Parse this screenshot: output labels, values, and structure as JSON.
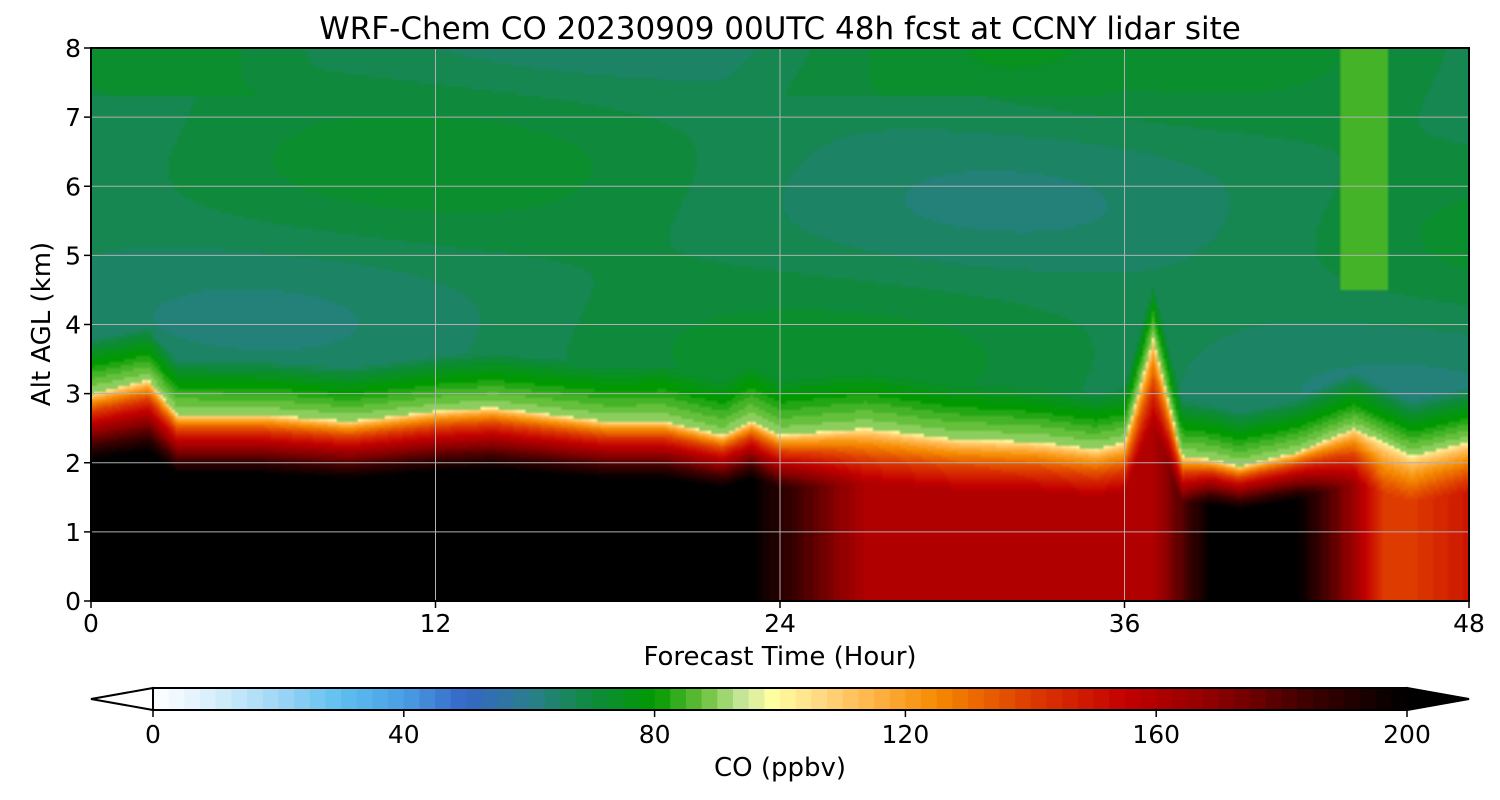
{
  "chart_data": {
    "type": "heatmap",
    "title": "WRF-Chem CO  20230909 00UTC 48h fcst at CCNY lidar site",
    "xlabel": "Forecast Time (Hour)",
    "ylabel": "Alt AGL (km)",
    "xlim": [
      0,
      48
    ],
    "ylim": [
      0,
      8
    ],
    "x_ticks": [
      "0",
      "12",
      "24",
      "36",
      "48"
    ],
    "y_ticks": [
      "0",
      "1",
      "2",
      "3",
      "4",
      "5",
      "6",
      "7",
      "8"
    ],
    "grid": true,
    "colorbar": {
      "label": "CO  (ppbv)",
      "range": [
        0,
        200
      ],
      "extend": "both",
      "ticks": [
        "0",
        "40",
        "80",
        "120",
        "160",
        "200"
      ],
      "colors": [
        [
          0,
          "#ffffff"
        ],
        [
          10,
          "#d5eefb"
        ],
        [
          20,
          "#9fd6f5"
        ],
        [
          30,
          "#5dbff0"
        ],
        [
          40,
          "#4a9ee5"
        ],
        [
          50,
          "#3466c6"
        ],
        [
          60,
          "#2a7e8e"
        ],
        [
          70,
          "#0f8a3c"
        ],
        [
          80,
          "#009a00"
        ],
        [
          88,
          "#6cc23f"
        ],
        [
          94,
          "#c8e69a"
        ],
        [
          99,
          "#ffffa0"
        ],
        [
          105,
          "#ffe08a"
        ],
        [
          115,
          "#ffb347"
        ],
        [
          125,
          "#f58a00"
        ],
        [
          140,
          "#dd3b00"
        ],
        [
          155,
          "#c40000"
        ],
        [
          170,
          "#8a0000"
        ],
        [
          185,
          "#3a0000"
        ],
        [
          200,
          "#000000"
        ]
      ]
    },
    "profile_hours": [
      0,
      2,
      3,
      6,
      9,
      12,
      14,
      18,
      20,
      22,
      23,
      24,
      27,
      30,
      33,
      35,
      36,
      37,
      38,
      39,
      40,
      42,
      44,
      45,
      46,
      48
    ],
    "boundary_layer_top_km": [
      3.0,
      3.2,
      2.7,
      2.7,
      2.6,
      2.75,
      2.8,
      2.6,
      2.6,
      2.4,
      2.6,
      2.4,
      2.5,
      2.35,
      2.3,
      2.2,
      2.3,
      3.8,
      2.1,
      2.05,
      1.95,
      2.15,
      2.5,
      2.3,
      2.1,
      2.3
    ],
    "near_surface_co_ppbv": [
      200,
      200,
      200,
      200,
      200,
      200,
      200,
      200,
      200,
      200,
      200,
      190,
      160,
      160,
      160,
      160,
      160,
      160,
      180,
      200,
      200,
      200,
      165,
      140,
      140,
      150
    ],
    "upper_co_ppbv": {
      "min": 62,
      "typical": 68,
      "max": 86
    }
  }
}
